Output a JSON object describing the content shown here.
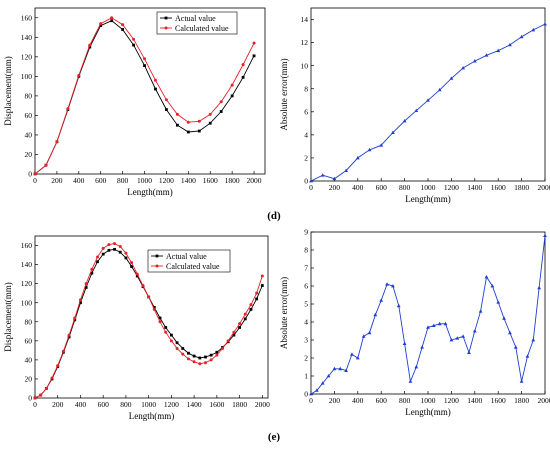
{
  "panels": {
    "d": "(d)",
    "e": "(e)"
  },
  "chart_data": [
    {
      "panel": "(d)",
      "type": "line",
      "xlabel": "Length(mm)",
      "ylabel": "Displacement(mm)",
      "xlim": [
        0,
        2100
      ],
      "ylim": [
        0,
        170
      ],
      "xticks": [
        0,
        200,
        400,
        600,
        800,
        1000,
        1200,
        1400,
        1600,
        1800,
        2000
      ],
      "yticks": [
        0,
        20,
        40,
        60,
        80,
        100,
        120,
        140,
        160
      ],
      "legend": "top-center",
      "x": [
        0,
        100,
        200,
        300,
        400,
        500,
        600,
        700,
        800,
        900,
        1000,
        1100,
        1200,
        1300,
        1400,
        1500,
        1600,
        1700,
        1800,
        1900,
        2000
      ],
      "series": [
        {
          "name": "Actual value",
          "color": "#000000",
          "marker": "square",
          "values": [
            0,
            9,
            33,
            66,
            100,
            130,
            152,
            157,
            148,
            132,
            111,
            87,
            66,
            50,
            43,
            44,
            52,
            64,
            80,
            99,
            121
          ]
        },
        {
          "name": "Calculated value",
          "color": "#e8202a",
          "marker": "circle",
          "values": [
            0,
            9,
            33,
            67,
            101,
            132,
            154,
            160,
            153,
            138,
            118,
            96,
            76,
            61,
            53,
            54,
            61,
            74,
            91,
            112,
            134
          ]
        }
      ]
    },
    {
      "panel": "(d)",
      "type": "line",
      "xlabel": "Length(mm)",
      "ylabel": "Absolute error(mm)",
      "xlim": [
        0,
        2000
      ],
      "ylim": [
        0,
        15
      ],
      "xticks": [
        0,
        200,
        400,
        600,
        800,
        1000,
        1200,
        1400,
        1600,
        1800,
        2000
      ],
      "yticks": [
        0,
        2,
        4,
        6,
        8,
        10,
        12,
        14
      ],
      "x": [
        0,
        100,
        200,
        300,
        400,
        500,
        600,
        700,
        800,
        900,
        1000,
        1100,
        1200,
        1300,
        1400,
        1500,
        1600,
        1700,
        1800,
        1900,
        2000
      ],
      "series": [
        {
          "color": "#1f3fd1",
          "marker": "triangle",
          "values": [
            0,
            0.5,
            0.2,
            0.9,
            2.0,
            2.7,
            3.1,
            4.2,
            5.2,
            6.1,
            7.0,
            7.9,
            8.9,
            9.8,
            10.4,
            10.9,
            11.3,
            11.8,
            12.5,
            13.1,
            13.6
          ]
        }
      ]
    },
    {
      "panel": "(e)",
      "type": "line",
      "xlabel": "Length(mm)",
      "ylabel": "Displacement(mm)",
      "xlim": [
        0,
        2050
      ],
      "ylim": [
        0,
        170
      ],
      "xticks": [
        0,
        200,
        400,
        600,
        800,
        1000,
        1200,
        1400,
        1600,
        1800,
        2000
      ],
      "yticks": [
        0,
        20,
        40,
        60,
        80,
        100,
        120,
        140,
        160
      ],
      "legend": "top-right",
      "x": [
        0,
        50,
        100,
        150,
        200,
        250,
        300,
        350,
        400,
        450,
        500,
        550,
        600,
        650,
        700,
        750,
        800,
        850,
        900,
        950,
        1000,
        1050,
        1100,
        1150,
        1200,
        1250,
        1300,
        1350,
        1400,
        1450,
        1500,
        1550,
        1600,
        1650,
        1700,
        1750,
        1800,
        1850,
        1900,
        1950,
        2000
      ],
      "series": [
        {
          "name": "Actual value",
          "color": "#000000",
          "marker": "square",
          "values": [
            0,
            3,
            10,
            20,
            33,
            48,
            64,
            82,
            100,
            116,
            131,
            143,
            151,
            155,
            156,
            153,
            147,
            138,
            128,
            117,
            106,
            95,
            84,
            74,
            66,
            58,
            52,
            47,
            44,
            42,
            43,
            45,
            48,
            53,
            59,
            66,
            74,
            83,
            93,
            104,
            118
          ]
        },
        {
          "name": "Calculated value",
          "color": "#e8202a",
          "marker": "circle",
          "values": [
            0,
            3,
            10,
            21,
            34,
            49,
            66,
            84,
            103,
            120,
            135,
            148,
            157,
            161,
            162,
            159,
            152,
            142,
            130,
            118,
            106,
            93,
            80,
            69,
            60,
            52,
            46,
            41,
            38,
            36,
            37,
            40,
            45,
            52,
            60,
            69,
            78,
            88,
            98,
            110,
            128
          ]
        }
      ]
    },
    {
      "panel": "(e)",
      "type": "line",
      "xlabel": "Length(mm)",
      "ylabel": "Absolute error(mm)",
      "xlim": [
        0,
        2000
      ],
      "ylim": [
        0,
        9
      ],
      "xticks": [
        0,
        200,
        400,
        600,
        800,
        1000,
        1200,
        1400,
        1600,
        1800,
        2000
      ],
      "yticks": [
        0,
        1,
        2,
        3,
        4,
        5,
        6,
        7,
        8,
        9
      ],
      "x": [
        0,
        50,
        100,
        150,
        200,
        250,
        300,
        350,
        400,
        450,
        500,
        550,
        600,
        650,
        700,
        750,
        800,
        850,
        900,
        950,
        1000,
        1050,
        1100,
        1150,
        1200,
        1250,
        1300,
        1350,
        1400,
        1450,
        1500,
        1550,
        1600,
        1650,
        1700,
        1750,
        1800,
        1850,
        1900,
        1950,
        2000
      ],
      "series": [
        {
          "color": "#1f3fd1",
          "marker": "triangle",
          "values": [
            0,
            0.2,
            0.6,
            1.0,
            1.4,
            1.4,
            1.3,
            2.2,
            2.0,
            3.2,
            3.4,
            4.4,
            5.2,
            6.1,
            6.0,
            4.9,
            2.8,
            0.7,
            1.5,
            2.6,
            3.7,
            3.8,
            3.9,
            3.9,
            3.0,
            3.1,
            3.2,
            2.3,
            3.5,
            4.6,
            6.5,
            6.0,
            5.1,
            4.2,
            3.4,
            2.6,
            0.7,
            2.1,
            3.0,
            5.9,
            8.8
          ]
        }
      ]
    }
  ]
}
